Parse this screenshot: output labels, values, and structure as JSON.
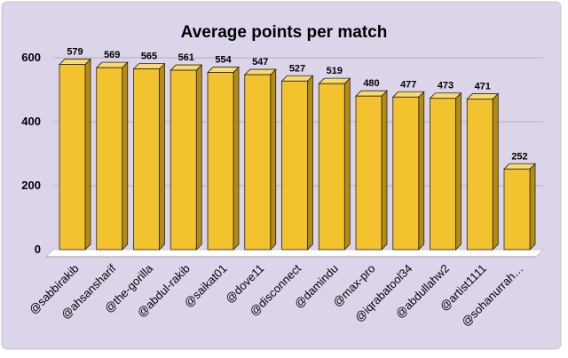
{
  "colors": {
    "background": "#dcd5ea",
    "bar_front": "#f2c22f",
    "bar_side": "#b48c14",
    "bar_top": "#f8da70",
    "gridline": "#b3acbf"
  },
  "chart_data": {
    "type": "bar",
    "title": "Average points per match",
    "xlabel": "",
    "ylabel": "",
    "ylim": [
      0,
      600
    ],
    "yticks": [
      0,
      200,
      400,
      600
    ],
    "grid": true,
    "categories": [
      "@sabbirakib",
      "@ahsansharif",
      "@the-gorilla",
      "@abdul-rakib",
      "@saikat01",
      "@dove11",
      "@disconnect",
      "@damindu",
      "@max-pro",
      "@iqrabatool34",
      "@abdullahw2",
      "@artist1111",
      "@sohanurrah…"
    ],
    "values": [
      579,
      569,
      565,
      561,
      554,
      547,
      527,
      519,
      480,
      477,
      473,
      471,
      252
    ]
  }
}
